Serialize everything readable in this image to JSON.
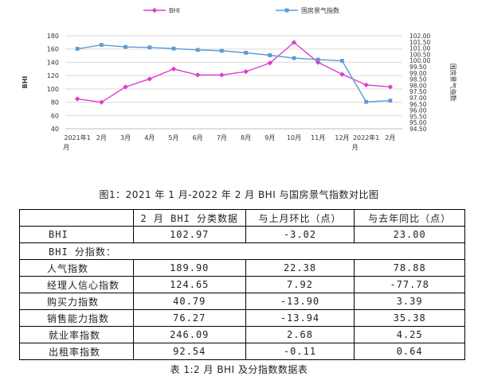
{
  "chart_data": {
    "type": "line",
    "categories": [
      "2021年1\n月",
      "2月",
      "3月",
      "4月",
      "5月",
      "6月",
      "7月",
      "8月",
      "9月",
      "10月",
      "11月",
      "12月",
      "2022年1\n月",
      "2月"
    ],
    "series": [
      {
        "name": "BHI",
        "axis": "left",
        "color": "#e23ad0",
        "marker": "diamond",
        "values": [
          85,
          80,
          103,
          115,
          130,
          121,
          121,
          126,
          139,
          170,
          140,
          122,
          106,
          103
        ]
      },
      {
        "name": "国房景气指数",
        "axis": "right",
        "color": "#5b9bd5",
        "marker": "square",
        "values": [
          100.95,
          101.26,
          101.1,
          101.06,
          100.97,
          100.86,
          100.79,
          100.63,
          100.43,
          100.2,
          100.08,
          99.98,
          96.67,
          96.77
        ]
      }
    ],
    "ylabel": "BHI",
    "y2label": "国房景气指数",
    "ylim": [
      40,
      180
    ],
    "yticks": [
      "40",
      "60",
      "80",
      "100",
      "120",
      "140",
      "160",
      "180"
    ],
    "y2lim": [
      94.5,
      102.0
    ],
    "y2ticks": [
      "94.50",
      "95.00",
      "95.50",
      "96.00",
      "96.50",
      "97.00",
      "97.50",
      "98.00",
      "98.50",
      "99.00",
      "99.50",
      "100.00",
      "100.50",
      "101.00",
      "101.50",
      "102.00"
    ],
    "legend_position": "top",
    "grid": "horizontal"
  },
  "figure_caption": "图1：2021 年 1 月-2022 年 2 月 BHI 与国房景气指数对比图",
  "table": {
    "headers": [
      "",
      "2 月 BHI 分类数据",
      "与上月环比（点）",
      "与去年同比（点）"
    ],
    "bhi_row": {
      "name": "BHI",
      "v1": "102.97",
      "v2": "-3.02",
      "v3": "23.00"
    },
    "section_label": "BHI 分指数：",
    "rows": [
      {
        "name": "人气指数",
        "v1": "189.90",
        "v2": "22.38",
        "v3": "78.88"
      },
      {
        "name": "经理人信心指数",
        "v1": "124.65",
        "v2": "7.92",
        "v3": "-77.78"
      },
      {
        "name": "购买力指数",
        "v1": "40.79",
        "v2": "-13.90",
        "v3": "3.39"
      },
      {
        "name": "销售能力指数",
        "v1": "76.27",
        "v2": "-13.94",
        "v3": "35.38"
      },
      {
        "name": "就业率指数",
        "v1": "246.09",
        "v2": "2.68",
        "v3": "4.25"
      },
      {
        "name": "出租率指数",
        "v1": "92.54",
        "v2": "-0.11",
        "v3": "0.64"
      }
    ]
  },
  "table_caption": "表 1:2 月 BHI 及分指数数据表"
}
